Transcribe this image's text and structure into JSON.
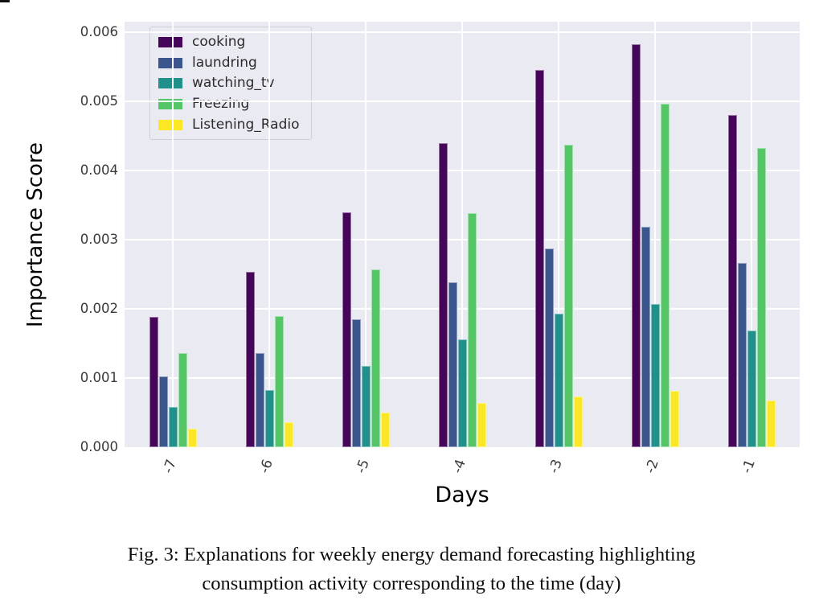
{
  "figure": {
    "caption_line1": "Fig. 3: Explanations for weekly energy demand forecasting highlighting",
    "caption_line2": "consumption activity corresponding to the time (day)"
  },
  "chart_data": {
    "type": "bar",
    "title": "",
    "xlabel": "Days",
    "ylabel": "Importance Score",
    "categories": [
      "-7",
      "-6",
      "-5",
      "-4",
      "-3",
      "-2",
      "-1"
    ],
    "series": [
      {
        "name": "cooking",
        "color": "#45065a",
        "values": [
          0.00188,
          0.00253,
          0.0034,
          0.0044,
          0.00545,
          0.00583,
          0.0048
        ]
      },
      {
        "name": "laundring",
        "color": "#3b568c",
        "values": [
          0.00102,
          0.00136,
          0.00185,
          0.00238,
          0.00287,
          0.00318,
          0.00266
        ]
      },
      {
        "name": "watching_tv",
        "color": "#20908c",
        "values": [
          0.00058,
          0.00083,
          0.00117,
          0.00156,
          0.00193,
          0.00207,
          0.00168
        ]
      },
      {
        "name": "Freezing",
        "color": "#55c667",
        "values": [
          0.00136,
          0.0019,
          0.00257,
          0.00338,
          0.00437,
          0.00496,
          0.00432
        ]
      },
      {
        "name": "Listening_Radio",
        "color": "#fce724",
        "values": [
          0.00027,
          0.00036,
          0.0005,
          0.00064,
          0.00073,
          0.00081,
          0.00067
        ]
      }
    ],
    "ylim": [
      0,
      0.00615
    ],
    "y_ticks": [
      0.0,
      0.001,
      0.002,
      0.003,
      0.004,
      0.005,
      0.006
    ],
    "y_tick_labels": [
      "0.000",
      "0.001",
      "0.002",
      "0.003",
      "0.004",
      "0.005",
      "0.006"
    ],
    "grid": true,
    "legend_position": "upper left",
    "plot_bg": "#eaeaf2",
    "grid_color": "#ffffff"
  }
}
